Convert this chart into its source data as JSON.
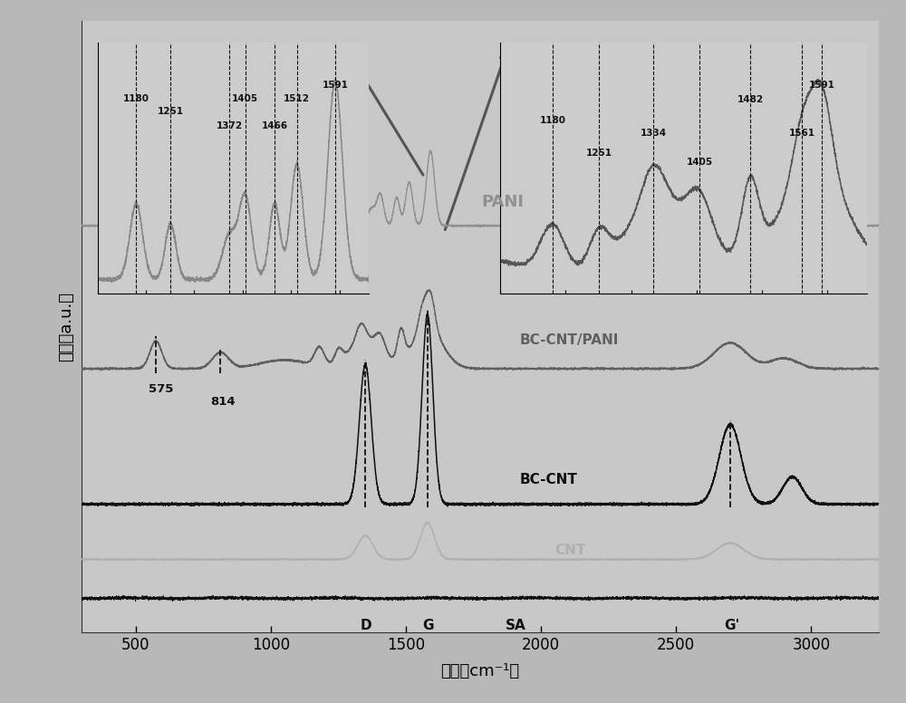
{
  "xmin": 300,
  "xmax": 3250,
  "background_color": "#b8b8b8",
  "plot_bg": "#c8c8c8",
  "ylabel": "强度（a.u.）",
  "xlabel": "波数（cm⁻¹）",
  "xticks": [
    500,
    1000,
    1500,
    2000,
    2500,
    3000
  ],
  "pani_color": "#909090",
  "bccnt_pani_color": "#606060",
  "bccnt_color": "#101010",
  "cnt_color": "#b0b0b0",
  "sa_color": "#101010",
  "inset_left_peaks": [
    1180,
    1251,
    1372,
    1405,
    1466,
    1512,
    1591
  ],
  "inset_right_peaks": [
    1180,
    1251,
    1334,
    1405,
    1482,
    1561,
    1591
  ]
}
